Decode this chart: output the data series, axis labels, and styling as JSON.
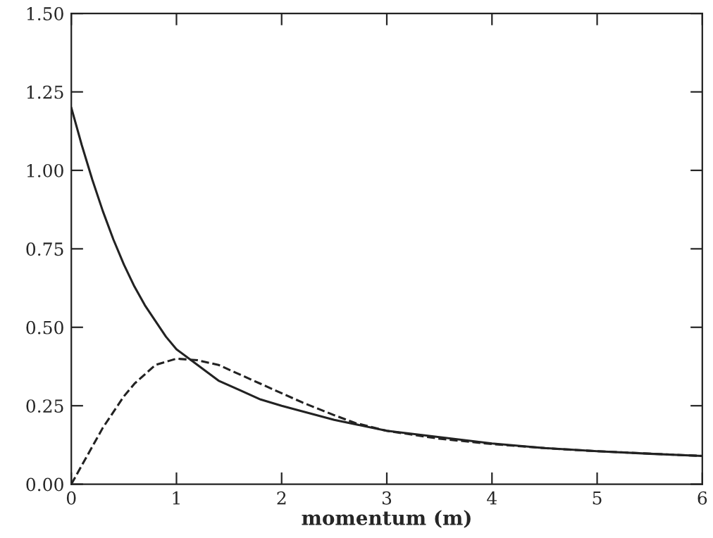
{
  "chart_data": {
    "type": "line",
    "xlabel": "momentum (m)",
    "xlim": [
      0,
      6
    ],
    "ylim": [
      0,
      1.5
    ],
    "xticks": [
      0,
      1,
      2,
      3,
      4,
      5,
      6
    ],
    "yticks": [
      {
        "value": 0,
        "label": "0.00"
      },
      {
        "value": 0.25,
        "label": "0.25"
      },
      {
        "value": 0.5,
        "label": "0.50"
      },
      {
        "value": 0.75,
        "label": "0.75"
      },
      {
        "value": 1,
        "label": "1.00"
      },
      {
        "value": 1.25,
        "label": "1.25"
      },
      {
        "value": 1.5,
        "label": "1.50"
      }
    ],
    "grid": false,
    "marker": "none",
    "series": [
      {
        "color": "#222222",
        "line_style": "solid",
        "x": [
          0,
          0.1,
          0.2,
          0.3,
          0.4,
          0.5,
          0.6,
          0.7,
          0.8,
          0.9,
          1.0,
          1.2,
          1.4,
          1.6,
          1.8,
          2.0,
          2.5,
          3.0,
          3.5,
          4.0,
          4.5,
          5.0,
          5.5,
          6.0
        ],
        "values": [
          1.2,
          1.08,
          0.97,
          0.87,
          0.78,
          0.7,
          0.63,
          0.57,
          0.52,
          0.47,
          0.43,
          0.38,
          0.33,
          0.3,
          0.27,
          0.25,
          0.205,
          0.17,
          0.15,
          0.13,
          0.115,
          0.105,
          0.097,
          0.09
        ]
      },
      {
        "color": "#222222",
        "line_style": "dashed",
        "x": [
          0,
          0.1,
          0.2,
          0.3,
          0.4,
          0.5,
          0.6,
          0.7,
          0.8,
          0.9,
          1.0,
          1.2,
          1.4,
          1.6,
          1.8,
          2.0,
          2.2,
          2.5,
          2.7,
          3.0,
          3.5,
          4.0,
          4.5,
          5.0,
          6.0
        ],
        "values": [
          0,
          0.06,
          0.12,
          0.18,
          0.23,
          0.28,
          0.32,
          0.35,
          0.38,
          0.39,
          0.4,
          0.395,
          0.38,
          0.35,
          0.32,
          0.29,
          0.26,
          0.22,
          0.195,
          0.17,
          0.145,
          0.128,
          0.115,
          0.105,
          0.09
        ]
      }
    ]
  }
}
